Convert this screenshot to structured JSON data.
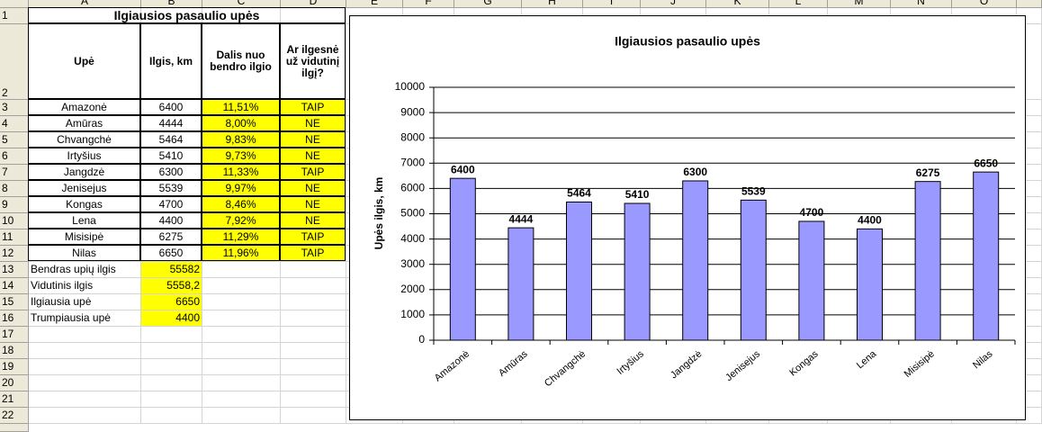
{
  "sheet": {
    "columns": [
      "A",
      "B",
      "C",
      "D",
      "E",
      "F",
      "G",
      "H",
      "I",
      "J",
      "K",
      "L",
      "M",
      "N",
      "O"
    ],
    "rows": [
      "1",
      "2",
      "3",
      "4",
      "5",
      "6",
      "7",
      "8",
      "9",
      "10",
      "11",
      "12",
      "13",
      "14",
      "15",
      "16",
      "17",
      "18",
      "19",
      "20",
      "21",
      "22"
    ],
    "title": "Ilgiausios pasaulio upės",
    "headers": [
      "Upė",
      "Ilgis, km",
      "Dalis nuo bendro ilgio",
      "Ar ilgesnė už vidutinį ilgį?"
    ],
    "data": [
      [
        "Amazonė",
        "6400",
        "11,51%",
        "TAIP"
      ],
      [
        "Amūras",
        "4444",
        "8,00%",
        "NE"
      ],
      [
        "Chvangchė",
        "5464",
        "9,83%",
        "NE"
      ],
      [
        "Irtyšius",
        "5410",
        "9,73%",
        "NE"
      ],
      [
        "Jangdzė",
        "6300",
        "11,33%",
        "TAIP"
      ],
      [
        "Jenisejus",
        "5539",
        "9,97%",
        "NE"
      ],
      [
        "Kongas",
        "4700",
        "8,46%",
        "NE"
      ],
      [
        "Lena",
        "4400",
        "7,92%",
        "NE"
      ],
      [
        "Misisipė",
        "6275",
        "11,29%",
        "TAIP"
      ],
      [
        "Nilas",
        "6650",
        "11,96%",
        "TAIP"
      ]
    ],
    "summary": [
      [
        "Bendras upių ilgis",
        "55582"
      ],
      [
        "Vidutinis ilgis",
        "5558,2"
      ],
      [
        "Ilgiausia upė",
        "6650"
      ],
      [
        "Trumpiausia upė",
        "4400"
      ]
    ]
  },
  "chart_data": {
    "type": "bar",
    "title": "Ilgiausios pasaulio upės",
    "y_label": "Upės ilgis, km",
    "categories": [
      "Amazonė",
      "Amūras",
      "Chvangchė",
      "Irtyšius",
      "Jangdzė",
      "Jenisejus",
      "Kongas",
      "Lena",
      "Misisipė",
      "Nilas"
    ],
    "values": [
      6400,
      4444,
      5464,
      5410,
      6300,
      5539,
      4700,
      4400,
      6275,
      6650
    ],
    "color": "#9999ff",
    "ylim": [
      0,
      10000
    ],
    "yticks": [
      0,
      1000,
      2000,
      3000,
      4000,
      5000,
      6000,
      7000,
      8000,
      9000,
      10000
    ],
    "grid": true
  }
}
